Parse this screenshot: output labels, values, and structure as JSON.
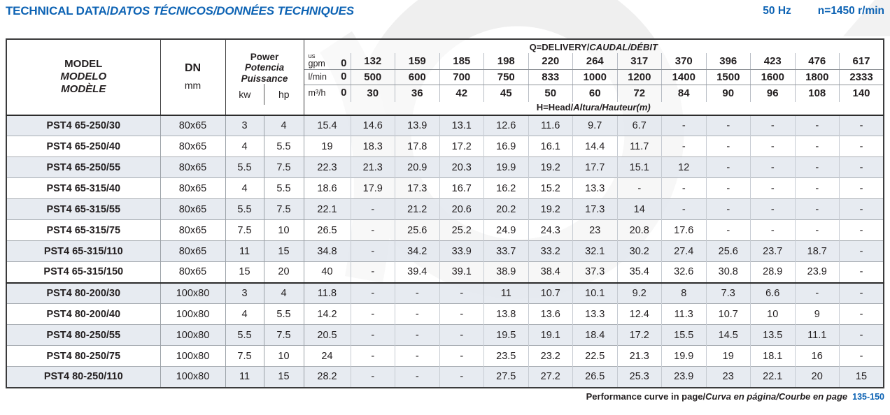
{
  "page": {
    "title": {
      "normal": "TECHNICAL DATA/",
      "italic": "DATOS TÉCNICOS/DONNÉES TECHNIQUES"
    },
    "frequency": "50 Hz",
    "speed": "n=1450 r/min",
    "footer": {
      "normal": "Performance curve in page/",
      "italic": "Curva en página/Courbe en page",
      "pages": "135-150"
    }
  },
  "colors": {
    "accent_blue": "#0d63b4",
    "row_shade": "#e7ebf2",
    "border_dark": "#3b3b3c",
    "text": "#231f20"
  },
  "table": {
    "header": {
      "model_lines": [
        "MODEL",
        "MODELO",
        "MODÈLE"
      ],
      "dn": {
        "label": "DN",
        "unit": "mm"
      },
      "power": {
        "lines": [
          "Power",
          "Potencia",
          "Puissance"
        ],
        "units": [
          "kw",
          "hp"
        ]
      },
      "delivery": {
        "normal": "Q=DELIVERY/",
        "italic": "CAUDAL/DÉBIT"
      },
      "head": {
        "normal": "H=Head/",
        "italic": "Altura/Hauteur",
        "unit": "(m)"
      },
      "flow_rows": [
        {
          "unit_top": "us",
          "unit": "gpm",
          "zero": "0",
          "values": [
            "132",
            "159",
            "185",
            "198",
            "220",
            "264",
            "317",
            "370",
            "396",
            "423",
            "476",
            "617"
          ]
        },
        {
          "unit": "l/min",
          "zero": "0",
          "values": [
            "500",
            "600",
            "700",
            "750",
            "833",
            "1000",
            "1200",
            "1400",
            "1500",
            "1600",
            "1800",
            "2333"
          ]
        },
        {
          "unit": "m³/h",
          "zero": "0",
          "values": [
            "30",
            "36",
            "42",
            "45",
            "50",
            "60",
            "72",
            "84",
            "90",
            "96",
            "108",
            "140"
          ]
        }
      ]
    },
    "groups": [
      {
        "rows": [
          {
            "model": "PST4 65-250/30",
            "dn": "80x65",
            "kw": "3",
            "hp": "4",
            "heads": [
              "15.4",
              "14.6",
              "13.9",
              "13.1",
              "12.6",
              "11.6",
              "9.7",
              "6.7",
              "-",
              "-",
              "-",
              "-",
              "-"
            ]
          },
          {
            "model": "PST4 65-250/40",
            "dn": "80x65",
            "kw": "4",
            "hp": "5.5",
            "heads": [
              "19",
              "18.3",
              "17.8",
              "17.2",
              "16.9",
              "16.1",
              "14.4",
              "11.7",
              "-",
              "-",
              "-",
              "-",
              "-"
            ]
          },
          {
            "model": "PST4 65-250/55",
            "dn": "80x65",
            "kw": "5.5",
            "hp": "7.5",
            "heads": [
              "22.3",
              "21.3",
              "20.9",
              "20.3",
              "19.9",
              "19.2",
              "17.7",
              "15.1",
              "12",
              "-",
              "-",
              "-",
              "-"
            ]
          },
          {
            "model": "PST4 65-315/40",
            "dn": "80x65",
            "kw": "4",
            "hp": "5.5",
            "heads": [
              "18.6",
              "17.9",
              "17.3",
              "16.7",
              "16.2",
              "15.2",
              "13.3",
              "-",
              "-",
              "-",
              "-",
              "-",
              "-"
            ]
          },
          {
            "model": "PST4 65-315/55",
            "dn": "80x65",
            "kw": "5.5",
            "hp": "7.5",
            "heads": [
              "22.1",
              "-",
              "21.2",
              "20.6",
              "20.2",
              "19.2",
              "17.3",
              "14",
              "-",
              "-",
              "-",
              "-",
              "-"
            ]
          },
          {
            "model": "PST4 65-315/75",
            "dn": "80x65",
            "kw": "7.5",
            "hp": "10",
            "heads": [
              "26.5",
              "-",
              "25.6",
              "25.2",
              "24.9",
              "24.3",
              "23",
              "20.8",
              "17.6",
              "-",
              "-",
              "-",
              "-"
            ]
          },
          {
            "model": "PST4 65-315/110",
            "dn": "80x65",
            "kw": "11",
            "hp": "15",
            "heads": [
              "34.8",
              "-",
              "34.2",
              "33.9",
              "33.7",
              "33.2",
              "32.1",
              "30.2",
              "27.4",
              "25.6",
              "23.7",
              "18.7",
              "-"
            ]
          },
          {
            "model": "PST4 65-315/150",
            "dn": "80x65",
            "kw": "15",
            "hp": "20",
            "heads": [
              "40",
              "-",
              "39.4",
              "39.1",
              "38.9",
              "38.4",
              "37.3",
              "35.4",
              "32.6",
              "30.8",
              "28.9",
              "23.9",
              "-"
            ]
          }
        ]
      },
      {
        "rows": [
          {
            "model": "PST4 80-200/30",
            "dn": "100x80",
            "kw": "3",
            "hp": "4",
            "heads": [
              "11.8",
              "-",
              "-",
              "-",
              "11",
              "10.7",
              "10.1",
              "9.2",
              "8",
              "7.3",
              "6.6",
              "-",
              "-"
            ]
          },
          {
            "model": "PST4 80-200/40",
            "dn": "100x80",
            "kw": "4",
            "hp": "5.5",
            "heads": [
              "14.2",
              "-",
              "-",
              "-",
              "13.8",
              "13.6",
              "13.3",
              "12.4",
              "11.3",
              "10.7",
              "10",
              "9",
              "-"
            ]
          },
          {
            "model": "PST4 80-250/55",
            "dn": "100x80",
            "kw": "5.5",
            "hp": "7.5",
            "heads": [
              "20.5",
              "-",
              "-",
              "-",
              "19.5",
              "19.1",
              "18.4",
              "17.2",
              "15.5",
              "14.5",
              "13.5",
              "11.1",
              "-"
            ]
          },
          {
            "model": "PST4 80-250/75",
            "dn": "100x80",
            "kw": "7.5",
            "hp": "10",
            "heads": [
              "24",
              "-",
              "-",
              "-",
              "23.5",
              "23.2",
              "22.5",
              "21.3",
              "19.9",
              "19",
              "18.1",
              "16",
              "-"
            ]
          },
          {
            "model": "PST4 80-250/110",
            "dn": "100x80",
            "kw": "11",
            "hp": "15",
            "heads": [
              "28.2",
              "-",
              "-",
              "-",
              "27.5",
              "27.2",
              "26.5",
              "25.3",
              "23.9",
              "23",
              "22.1",
              "20",
              "15"
            ]
          }
        ]
      }
    ]
  }
}
